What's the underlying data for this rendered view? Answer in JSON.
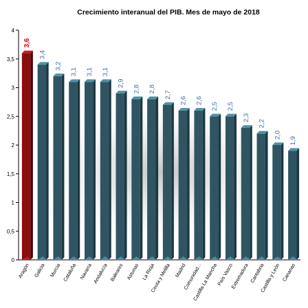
{
  "chart_data": {
    "type": "bar",
    "title": "Crecimiento interanual del PIB. Mes de mayo de 2018",
    "xlabel": "",
    "ylabel": "",
    "ylim": [
      0,
      4
    ],
    "yticks": [
      "0",
      "0,5",
      "1",
      "1,5",
      "2",
      "2,5",
      "3",
      "3,5",
      "4"
    ],
    "categories": [
      "Aragón",
      "Galicia",
      "Murcia",
      "Cataluña",
      "Navarra",
      "Andalucía",
      "Baleares",
      "Asturias",
      "La Rioja",
      "Ceuta y Melilla",
      "Madrid",
      "Comunidad...",
      "Castilla La Mancha",
      "País Vasco",
      "Extremadura",
      "Cantabria",
      "Castilla y León",
      "Canarias"
    ],
    "values": [
      3.6,
      3.4,
      3.2,
      3.1,
      3.1,
      3.1,
      2.9,
      2.8,
      2.8,
      2.7,
      2.6,
      2.6,
      2.5,
      2.5,
      2.3,
      2.2,
      2.0,
      1.9
    ],
    "value_labels": [
      "3,6",
      "3,4",
      "3,2",
      "3,1",
      "3,1",
      "3,1",
      "2,9",
      "2,8",
      "2,8",
      "2,7",
      "2,6",
      "2,6",
      "2,5",
      "2,5",
      "2,3",
      "2,2",
      "2,0",
      "1,9"
    ],
    "highlight_index": 0,
    "grid": false,
    "legend": "none",
    "colors": {
      "bar_front": "#2f5563",
      "bar_side": "#1b3842",
      "bar_top": "#4e93a8",
      "highlight_front": "#8b0d0d",
      "highlight_side": "#4d0505",
      "highlight_top": "#c22020",
      "label": "#3a6fb0",
      "highlight_label": "#e00000"
    }
  }
}
